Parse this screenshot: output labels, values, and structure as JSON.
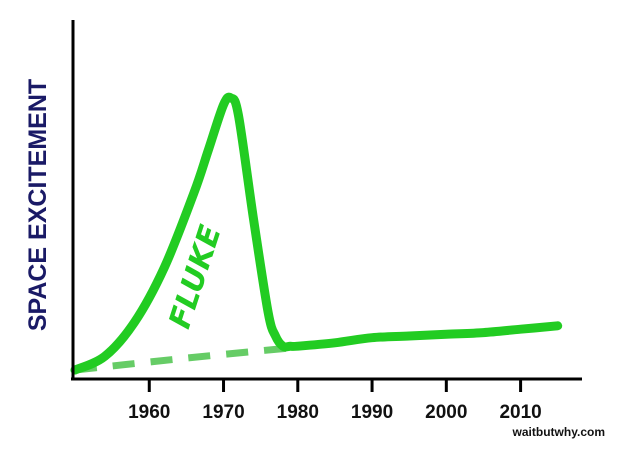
{
  "chart_data": {
    "type": "line",
    "ylabel": "SPACE EXCITEMENT",
    "xlabel": "",
    "x_ticks": [
      1960,
      1970,
      1980,
      1990,
      2000,
      2010
    ],
    "xlim": [
      1950,
      2018
    ],
    "ylim": [
      0,
      100
    ],
    "grid": false,
    "series": [
      {
        "style": "solid",
        "color": "#22cc22",
        "x": [
          1950,
          1954,
          1958,
          1962,
          1966,
          1968,
          1970,
          1971,
          1972,
          1974,
          1976,
          1977,
          1978,
          1979,
          1980,
          1985,
          1990,
          1995,
          2000,
          2005,
          2010,
          2015
        ],
        "y": [
          0,
          4,
          14,
          30,
          52,
          65,
          78,
          80,
          75,
          45,
          17,
          10,
          7,
          7,
          7,
          8,
          9.5,
          10,
          10.5,
          11,
          12,
          13
        ]
      },
      {
        "style": "dashed",
        "color": "#66cc66",
        "x": [
          1950,
          1965,
          1979
        ],
        "y": [
          0,
          3.5,
          6.5
        ]
      }
    ],
    "annotations": [
      {
        "text": "FLUKE",
        "x": 1968,
        "y": 30
      }
    ],
    "watermark": "waitbutwhy.com"
  }
}
